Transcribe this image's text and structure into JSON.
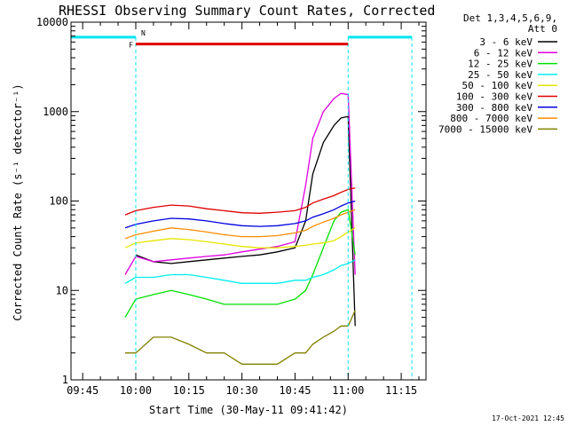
{
  "chart_data": {
    "type": "line",
    "title": "RHESSI Observing Summary Count Rates, Corrected",
    "xlabel": "Start Time (30-May-11 09:41:42)",
    "ylabel": "Corrected Count Rate (s⁻¹ detector⁻¹)",
    "yscale": "log",
    "ylim": [
      1,
      10000
    ],
    "xlim": [
      "09:41:42",
      "11:22:00"
    ],
    "xticks": [
      "09:45",
      "10:00",
      "10:15",
      "10:30",
      "10:45",
      "11:00",
      "11:15"
    ],
    "yticks": [
      "1",
      "10",
      "100",
      "1000",
      "10000"
    ],
    "legend_title": [
      "Det 1,3,4,5,6,9,",
      "Att 0"
    ],
    "legend_position": "right",
    "footer": "17-Oct-2021 12:45",
    "flags": {
      "F_label": "F",
      "N_label": "N",
      "flare_start": "10:00",
      "flare_end": "11:00",
      "night_intervals": [
        [
          "09:41:42",
          "10:00"
        ],
        [
          "11:00",
          "11:18"
        ]
      ],
      "night_color": "#00e5ee",
      "flare_color": "#e00000"
    },
    "x": [
      "09:57",
      "10:00",
      "10:05",
      "10:10",
      "10:15",
      "10:20",
      "10:25",
      "10:30",
      "10:35",
      "10:40",
      "10:45",
      "10:48",
      "10:50",
      "10:53",
      "10:56",
      "10:58",
      "11:00",
      "11:02"
    ],
    "series": [
      {
        "name": "3 - 6 keV",
        "color": "#000000",
        "values": [
          null,
          25,
          21,
          20,
          21,
          22,
          23,
          24,
          25,
          27,
          30,
          60,
          200,
          450,
          700,
          850,
          880,
          4
        ]
      },
      {
        "name": "6 - 12 keV",
        "color": "#e000e0",
        "values": [
          15,
          24,
          21,
          22,
          23,
          24,
          25,
          27,
          29,
          31,
          35,
          150,
          500,
          1000,
          1400,
          1600,
          1550,
          15
        ]
      },
      {
        "name": "12 - 25 keV",
        "color": "#00e000",
        "values": [
          5,
          8,
          9,
          10,
          9,
          8,
          7,
          7,
          7,
          7,
          8,
          10,
          15,
          30,
          60,
          75,
          80,
          25
        ]
      },
      {
        "name": "25 - 50 keV",
        "color": "#00eeee",
        "values": [
          12,
          14,
          14,
          15,
          15,
          14,
          13,
          12,
          12,
          12,
          13,
          13,
          14,
          15,
          17,
          19,
          20,
          22
        ]
      },
      {
        "name": "50 - 100 keV",
        "color": "#e6e600",
        "values": [
          30,
          34,
          36,
          38,
          37,
          35,
          33,
          31,
          30,
          30,
          31,
          32,
          33,
          34,
          36,
          40,
          45,
          50
        ]
      },
      {
        "name": "100 - 300 keV",
        "color": "#e00000",
        "values": [
          70,
          78,
          85,
          90,
          88,
          82,
          78,
          74,
          73,
          75,
          78,
          85,
          95,
          105,
          115,
          125,
          135,
          140
        ]
      },
      {
        "name": "300 - 800 keV",
        "color": "#0000e0",
        "values": [
          50,
          55,
          60,
          64,
          63,
          60,
          56,
          53,
          52,
          53,
          56,
          60,
          66,
          72,
          80,
          88,
          95,
          100
        ]
      },
      {
        "name": "800 - 7000 keV",
        "color": "#ff8c00",
        "values": [
          38,
          42,
          46,
          50,
          48,
          45,
          42,
          40,
          40,
          41,
          44,
          47,
          52,
          58,
          64,
          70,
          75,
          80
        ]
      },
      {
        "name": "7000 - 15000 keV",
        "color": "#808000",
        "values": [
          2,
          2,
          3,
          3,
          2.5,
          2,
          2,
          1.5,
          1.5,
          1.5,
          2,
          2,
          2.5,
          3,
          3.5,
          4,
          4,
          6
        ]
      }
    ]
  }
}
